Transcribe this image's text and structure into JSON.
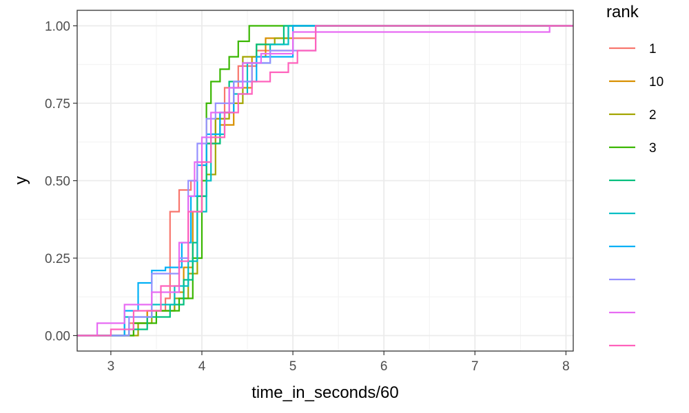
{
  "chart_data": {
    "type": "line",
    "step": true,
    "title": "",
    "xlabel": "time_in_seconds/60",
    "ylabel": "y",
    "xlim": [
      2.63,
      8.08
    ],
    "ylim": [
      -0.05,
      1.05
    ],
    "x_ticks": [
      3,
      4,
      5,
      6,
      7,
      8
    ],
    "y_ticks": [
      0.0,
      0.25,
      0.5,
      0.75,
      1.0
    ],
    "x_tick_labels": [
      "3",
      "4",
      "5",
      "6",
      "7",
      "8"
    ],
    "y_tick_labels": [
      "0.00",
      "0.25",
      "0.50",
      "0.75",
      "1.00"
    ],
    "grid": true,
    "theme": "bw",
    "legend": {
      "title": "rank",
      "position": "right",
      "entries": [
        {
          "label": "1",
          "color": "#F8766D"
        },
        {
          "label": "10",
          "color": "#D89000"
        },
        {
          "label": "2",
          "color": "#A3A500"
        },
        {
          "label": "3",
          "color": "#39B600"
        },
        {
          "label": "",
          "color": "#00BF7D"
        },
        {
          "label": "",
          "color": "#00BFC4"
        },
        {
          "label": "",
          "color": "#00B0F6"
        },
        {
          "label": "",
          "color": "#9590FF"
        },
        {
          "label": "",
          "color": "#E76BF3"
        },
        {
          "label": "",
          "color": "#FF62BC"
        }
      ]
    },
    "series": [
      {
        "color": "#F8766D",
        "x": [
          2.63,
          3.2,
          3.4,
          3.6,
          3.65,
          3.75,
          3.88,
          3.95,
          4.05,
          4.15,
          4.25,
          4.4,
          4.6,
          5.0,
          5.25,
          8.08
        ],
        "y": [
          0.0,
          0.04,
          0.08,
          0.12,
          0.4,
          0.47,
          0.5,
          0.56,
          0.62,
          0.7,
          0.8,
          0.87,
          0.92,
          0.96,
          1.0,
          1.0
        ]
      },
      {
        "color": "#D89000",
        "x": [
          2.63,
          3.25,
          3.4,
          3.7,
          3.8,
          3.9,
          4.0,
          4.05,
          4.2,
          4.35,
          4.55,
          4.7,
          5.0,
          8.08
        ],
        "y": [
          0.0,
          0.04,
          0.08,
          0.14,
          0.22,
          0.4,
          0.55,
          0.62,
          0.68,
          0.8,
          0.9,
          0.96,
          1.0,
          1.0
        ]
      },
      {
        "color": "#A3A500",
        "x": [
          2.63,
          3.3,
          3.45,
          3.7,
          3.85,
          3.95,
          4.05,
          4.15,
          4.3,
          4.45,
          4.6,
          4.8,
          4.95,
          8.08
        ],
        "y": [
          0.0,
          0.04,
          0.08,
          0.12,
          0.2,
          0.45,
          0.52,
          0.7,
          0.75,
          0.9,
          0.94,
          0.96,
          1.0,
          1.0
        ]
      },
      {
        "color": "#39B600",
        "x": [
          2.63,
          3.25,
          3.5,
          3.75,
          3.9,
          4.0,
          4.05,
          4.1,
          4.2,
          4.3,
          4.4,
          4.52,
          8.08
        ],
        "y": [
          0.0,
          0.04,
          0.08,
          0.12,
          0.25,
          0.5,
          0.75,
          0.82,
          0.86,
          0.9,
          0.95,
          1.0,
          1.0
        ]
      },
      {
        "color": "#00BF7D",
        "x": [
          2.63,
          3.2,
          3.4,
          3.65,
          3.8,
          3.9,
          3.95,
          4.05,
          4.2,
          4.3,
          4.45,
          4.6,
          4.9,
          8.08
        ],
        "y": [
          0.0,
          0.02,
          0.06,
          0.1,
          0.18,
          0.3,
          0.45,
          0.62,
          0.72,
          0.82,
          0.88,
          0.94,
          1.0,
          1.0
        ]
      },
      {
        "color": "#00BFC4",
        "x": [
          2.63,
          3.15,
          3.45,
          3.7,
          3.85,
          3.95,
          4.05,
          4.1,
          4.25,
          4.35,
          4.5,
          4.75,
          4.95,
          8.08
        ],
        "y": [
          0.0,
          0.06,
          0.1,
          0.16,
          0.24,
          0.4,
          0.5,
          0.65,
          0.72,
          0.78,
          0.88,
          0.94,
          1.0,
          1.0
        ]
      },
      {
        "color": "#00B0F6",
        "x": [
          2.63,
          3.15,
          3.3,
          3.45,
          3.6,
          3.78,
          3.88,
          3.95,
          4.05,
          4.2,
          4.35,
          4.6,
          5.0,
          8.08
        ],
        "y": [
          0.0,
          0.08,
          0.17,
          0.21,
          0.22,
          0.3,
          0.45,
          0.55,
          0.65,
          0.72,
          0.82,
          0.9,
          1.0,
          1.0
        ]
      },
      {
        "color": "#9590FF",
        "x": [
          2.63,
          3.2,
          3.45,
          3.75,
          3.85,
          3.95,
          4.05,
          4.15,
          4.35,
          4.55,
          4.75,
          5.25,
          8.08
        ],
        "y": [
          0.0,
          0.06,
          0.2,
          0.25,
          0.5,
          0.62,
          0.7,
          0.75,
          0.82,
          0.88,
          0.92,
          1.0,
          1.0
        ]
      },
      {
        "color": "#E76BF3",
        "x": [
          2.63,
          2.85,
          3.15,
          3.45,
          3.75,
          3.85,
          3.92,
          4.0,
          4.1,
          4.3,
          4.45,
          4.65,
          5.0,
          7.82,
          8.08
        ],
        "y": [
          0.0,
          0.04,
          0.1,
          0.14,
          0.3,
          0.45,
          0.56,
          0.64,
          0.72,
          0.8,
          0.88,
          0.91,
          0.98,
          1.0,
          1.0
        ]
      },
      {
        "color": "#FF62BC",
        "x": [
          2.63,
          3.0,
          3.25,
          3.55,
          3.75,
          3.85,
          4.0,
          4.1,
          4.25,
          4.4,
          4.55,
          4.75,
          4.95,
          5.05,
          5.25,
          8.08
        ],
        "y": [
          0.0,
          0.02,
          0.08,
          0.16,
          0.24,
          0.4,
          0.56,
          0.64,
          0.72,
          0.78,
          0.82,
          0.85,
          0.88,
          0.92,
          1.0,
          1.0
        ]
      }
    ]
  }
}
